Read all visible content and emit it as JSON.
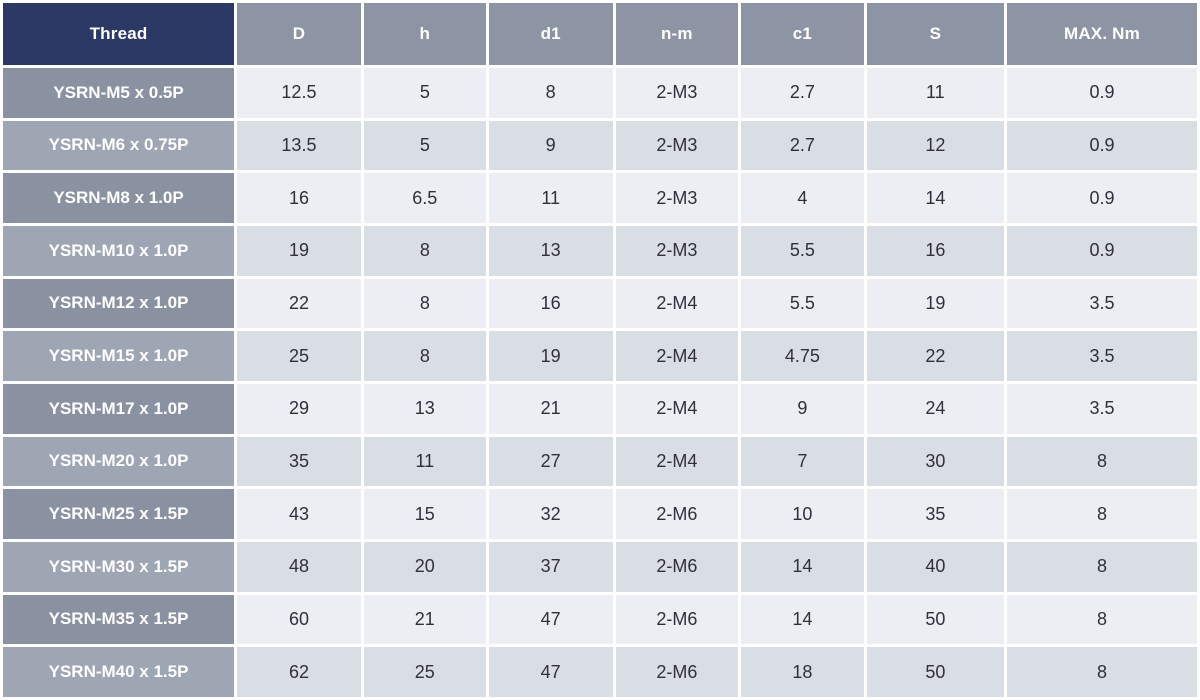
{
  "colors": {
    "header_thread_bg": "#2b3964",
    "header_bg": "#8d95a4",
    "header_text": "#ffffff",
    "row_label_bg_odd": "#8a92a2",
    "row_label_bg_even": "#9ea6b4",
    "row_label_text": "#ffffff",
    "cell_bg_odd": "#eceef3",
    "cell_bg_even": "#d9dde4",
    "cell_text": "#2e3138",
    "grid": "#ffffff"
  },
  "table": {
    "headers": [
      "Thread",
      "D",
      "h",
      "d1",
      "n-m",
      "c1",
      "S",
      "MAX. Nm"
    ],
    "column_widths_pct": [
      19.7,
      10.55,
      10.4,
      10.55,
      10.45,
      10.45,
      11.7,
      16.2
    ],
    "rows": [
      {
        "thread": "YSRN-M5 x 0.5P",
        "values": [
          "12.5",
          "5",
          "8",
          "2-M3",
          "2.7",
          "11",
          "0.9"
        ]
      },
      {
        "thread": "YSRN-M6 x 0.75P",
        "values": [
          "13.5",
          "5",
          "9",
          "2-M3",
          "2.7",
          "12",
          "0.9"
        ]
      },
      {
        "thread": "YSRN-M8 x 1.0P",
        "values": [
          "16",
          "6.5",
          "11",
          "2-M3",
          "4",
          "14",
          "0.9"
        ]
      },
      {
        "thread": "YSRN-M10 x 1.0P",
        "values": [
          "19",
          "8",
          "13",
          "2-M3",
          "5.5",
          "16",
          "0.9"
        ]
      },
      {
        "thread": "YSRN-M12 x 1.0P",
        "values": [
          "22",
          "8",
          "16",
          "2-M4",
          "5.5",
          "19",
          "3.5"
        ]
      },
      {
        "thread": "YSRN-M15 x 1.0P",
        "values": [
          "25",
          "8",
          "19",
          "2-M4",
          "4.75",
          "22",
          "3.5"
        ]
      },
      {
        "thread": "YSRN-M17 x 1.0P",
        "values": [
          "29",
          "13",
          "21",
          "2-M4",
          "9",
          "24",
          "3.5"
        ]
      },
      {
        "thread": "YSRN-M20 x 1.0P",
        "values": [
          "35",
          "11",
          "27",
          "2-M4",
          "7",
          "30",
          "8"
        ]
      },
      {
        "thread": "YSRN-M25 x 1.5P",
        "values": [
          "43",
          "15",
          "32",
          "2-M6",
          "10",
          "35",
          "8"
        ]
      },
      {
        "thread": "YSRN-M30 x 1.5P",
        "values": [
          "48",
          "20",
          "37",
          "2-M6",
          "14",
          "40",
          "8"
        ]
      },
      {
        "thread": "YSRN-M35 x 1.5P",
        "values": [
          "60",
          "21",
          "47",
          "2-M6",
          "14",
          "50",
          "8"
        ]
      },
      {
        "thread": "YSRN-M40 x 1.5P",
        "values": [
          "62",
          "25",
          "47",
          "2-M6",
          "18",
          "50",
          "8"
        ]
      }
    ]
  }
}
